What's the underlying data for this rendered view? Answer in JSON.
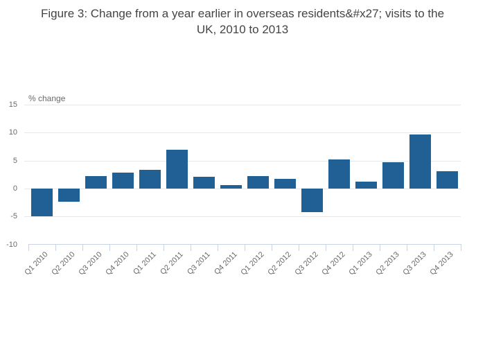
{
  "title": "Figure 3: Change from a year earlier in overseas residents&#x27; visits to the UK, 2010 to 2013",
  "chart_data": {
    "type": "bar",
    "title": "Figure 3: Change from a year earlier in overseas residents&#x27; visits to the UK, 2010 to 2013",
    "ylabel": "% change",
    "xlabel": "",
    "categories": [
      "Q1 2010",
      "Q2 2010",
      "Q3 2010",
      "Q4 2010",
      "Q1 2011",
      "Q2 2011",
      "Q3 2011",
      "Q4 2011",
      "Q1 2012",
      "Q2 2012",
      "Q3 2012",
      "Q4 2012",
      "Q1 2013",
      "Q2 2013",
      "Q3 2013",
      "Q4 2013"
    ],
    "values": [
      -4.9,
      -2.4,
      2.2,
      2.9,
      3.4,
      7.0,
      2.1,
      0.6,
      2.2,
      1.7,
      -4.2,
      5.2,
      1.2,
      4.7,
      9.7,
      3.1
    ],
    "ylim": [
      -10,
      15
    ],
    "yticks": [
      15,
      10,
      5,
      0,
      -5,
      -10
    ],
    "grid": true,
    "legend": "none",
    "colors": {
      "bar": "#206095",
      "grid": "#e7e7e7",
      "axis": "#c8d4e3",
      "tick_text": "#696969",
      "title_text": "#444444"
    }
  }
}
